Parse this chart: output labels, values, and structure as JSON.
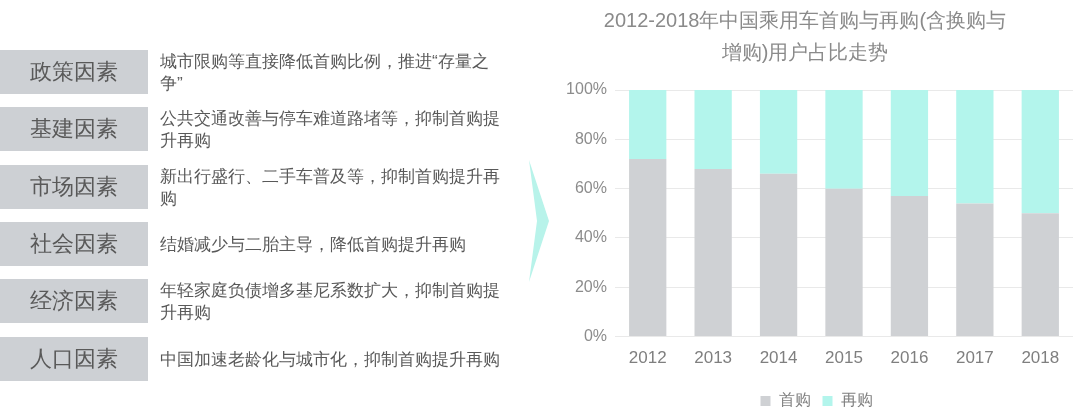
{
  "chart_data": [
    {
      "type": "other",
      "categories": [
        "政策因素",
        "基建因素",
        "市场因素",
        "社会因素",
        "经济因素",
        "人口因素"
      ],
      "annotations": [
        "城市限购等直接降低首购比例，推进“存量之争”",
        "公共交通改善与停车难道路堵等，抑制首购提升再购",
        "新出行盛行、二手车普及等，抑制首购提升再购",
        "结婚减少与二胎主导，降低首购提升再购",
        "年轻家庭负债增多基尼系数扩大，抑制首购提升再购",
        "中国加速老龄化与城市化，抑制首购提升再购"
      ]
    },
    {
      "type": "bar",
      "title": "2012-2018年中国乘用车首购与再购(含换购与增购)用户占比走势",
      "categories": [
        "2012",
        "2013",
        "2014",
        "2015",
        "2016",
        "2017",
        "2018"
      ],
      "series": [
        {
          "name": "首购",
          "color": "#cfd1d4",
          "values": [
            72,
            68,
            66,
            60,
            57,
            54,
            50
          ]
        },
        {
          "name": "再购",
          "color": "#b3f5ec",
          "values": [
            28,
            32,
            34,
            40,
            43,
            46,
            50
          ]
        }
      ],
      "stacked": true,
      "ylim": [
        0,
        100
      ],
      "yticks": [
        {
          "value": 0,
          "label": "0%"
        },
        {
          "value": 20,
          "label": "20%"
        },
        {
          "value": 40,
          "label": "40%"
        },
        {
          "value": 60,
          "label": "60%"
        },
        {
          "value": 80,
          "label": "80%"
        },
        {
          "value": 100,
          "label": "100%"
        }
      ],
      "grid": "y",
      "legend": "bottom"
    }
  ]
}
